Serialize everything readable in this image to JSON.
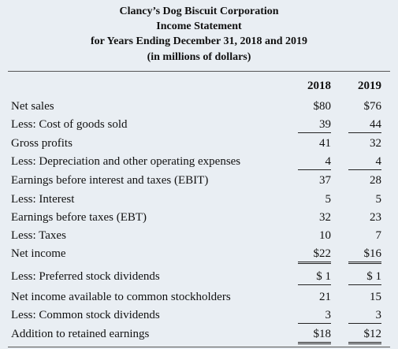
{
  "header": {
    "company": "Clancy’s Dog Biscuit Corporation",
    "title": "Income Statement",
    "period": "for Years Ending December 31, 2018 and 2019",
    "units": "(in millions of dollars)"
  },
  "table": {
    "columns": [
      "2018",
      "2019"
    ],
    "rows": [
      [
        "Net sales",
        "$80",
        "$76"
      ],
      [
        "Less: Cost of goods sold",
        "39",
        "44"
      ],
      [
        "Gross profits",
        "41",
        "32"
      ],
      [
        "Less: Depreciation and other operating expenses",
        "4",
        "4"
      ],
      [
        "Earnings before interest and taxes (EBIT)",
        "37",
        "28"
      ],
      [
        "Less: Interest",
        "5",
        "5"
      ],
      [
        "Earnings before taxes (EBT)",
        "32",
        "23"
      ],
      [
        "Less: Taxes",
        "10",
        "7"
      ],
      [
        "Net income",
        "$22",
        "$16"
      ],
      [
        "Less: Preferred stock dividends",
        "$ 1",
        "$ 1"
      ],
      [
        "Net income available to common stockholders",
        "21",
        "15"
      ],
      [
        "Less: Common stock dividends",
        "3",
        "3"
      ],
      [
        "Addition to retained earnings",
        "$18",
        "$12"
      ]
    ]
  }
}
